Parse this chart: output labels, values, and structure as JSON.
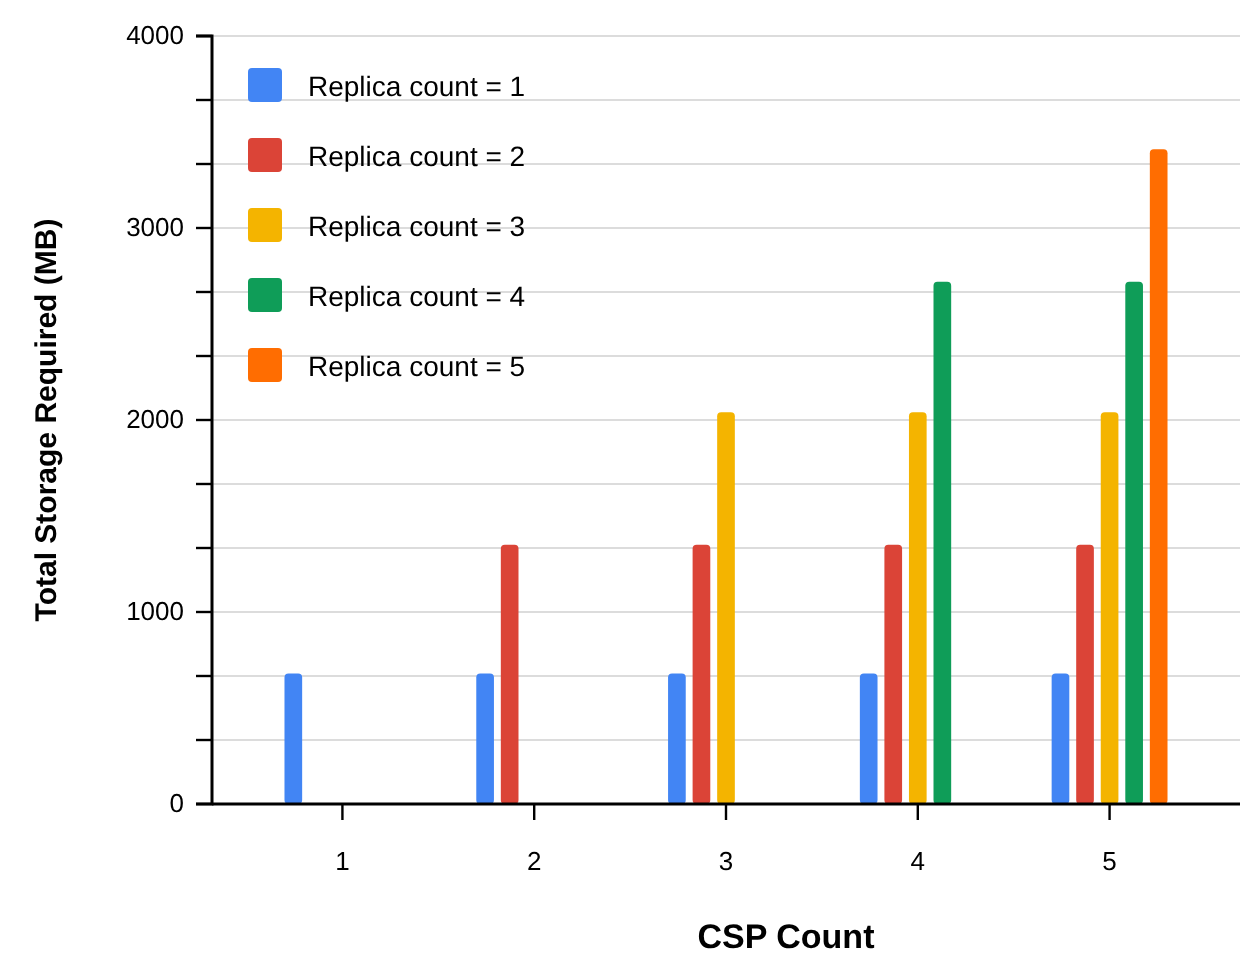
{
  "chart_data": {
    "type": "bar",
    "xlabel": "CSP Count",
    "ylabel": "Total Storage Required (MB)",
    "categories": [
      "1",
      "2",
      "3",
      "4",
      "5"
    ],
    "series": [
      {
        "name": "Replica count = 1",
        "color": "#4285f4",
        "values": [
          680,
          680,
          680,
          680,
          680
        ]
      },
      {
        "name": "Replica count = 2",
        "color": "#db4437",
        "values": [
          null,
          1350,
          1350,
          1350,
          1350
        ]
      },
      {
        "name": "Replica count = 3",
        "color": "#f4b400",
        "values": [
          null,
          null,
          2040,
          2040,
          2040
        ]
      },
      {
        "name": "Replica count = 4",
        "color": "#0f9d58",
        "values": [
          null,
          null,
          null,
          2720,
          2720
        ]
      },
      {
        "name": "Replica count = 5",
        "color": "#ff6d01",
        "values": [
          null,
          null,
          null,
          null,
          3410
        ]
      }
    ],
    "ylim": [
      0,
      4000
    ],
    "yticks": [
      0,
      {
        "value": 333.3,
        "label": null
      },
      {
        "value": 666.7,
        "label": null
      },
      1000,
      {
        "value": 1333.3,
        "label": null
      },
      {
        "value": 1666.7,
        "label": null
      },
      2000,
      {
        "value": 2333.3,
        "label": null
      },
      {
        "value": 2666.7,
        "label": null
      },
      3000,
      {
        "value": 3333.3,
        "label": null
      },
      {
        "value": 3666.7,
        "label": null
      },
      4000
    ],
    "grid": "y",
    "legend": "top left"
  }
}
